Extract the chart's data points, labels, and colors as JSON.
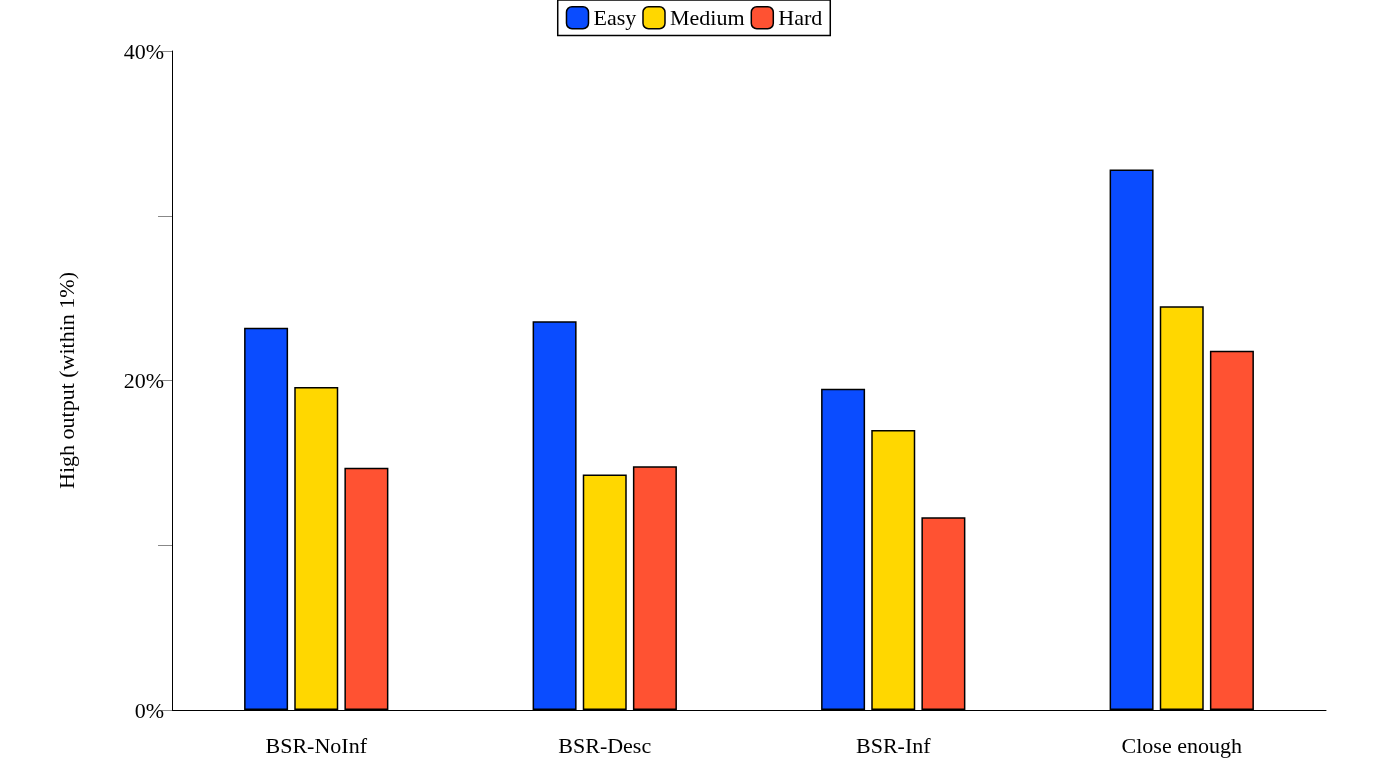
{
  "chart_data": {
    "type": "bar",
    "ylabel": "High output (within 1%)",
    "categories": [
      "BSR-NoInf",
      "BSR-Desc",
      "BSR-Inf",
      "Close enough"
    ],
    "series": [
      {
        "name": "Easy",
        "color": "#0a4cff",
        "values": [
          23.2,
          23.6,
          19.5,
          32.8
        ]
      },
      {
        "name": "Medium",
        "color": "#ffd700",
        "values": [
          19.6,
          14.3,
          17.0,
          24.5
        ]
      },
      {
        "name": "Hard",
        "color": "#ff5232",
        "values": [
          14.7,
          14.8,
          11.7,
          21.8
        ]
      }
    ],
    "ylim": [
      0,
      40
    ],
    "yticks": [
      {
        "value": 0,
        "label": "0%"
      },
      {
        "value": 10,
        "label": null
      },
      {
        "value": 20,
        "label": "20%"
      },
      {
        "value": 30,
        "label": null
      },
      {
        "value": 40,
        "label": "40%"
      }
    ],
    "grid": false,
    "legend": "top"
  }
}
